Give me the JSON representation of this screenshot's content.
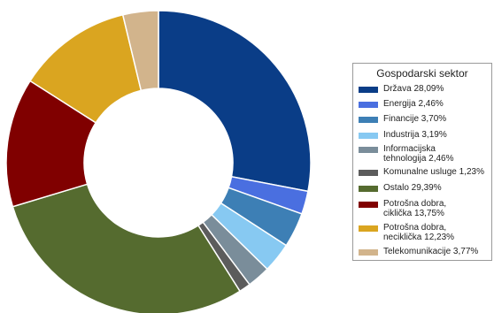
{
  "chart_data": {
    "type": "pie",
    "variant": "donut",
    "title": "",
    "legend": {
      "title": "Gospodarski sektor",
      "placement": "right"
    },
    "slices": [
      {
        "label": "Država 28,09%",
        "value": 28.09,
        "color": "#0a3d87"
      },
      {
        "label": "Energija 2,46%",
        "value": 2.46,
        "color": "#4a6fe0"
      },
      {
        "label": "Financije 3,70%",
        "value": 3.7,
        "color": "#3d7fb5"
      },
      {
        "label": "Industrija 3,19%",
        "value": 3.19,
        "color": "#87c9f2"
      },
      {
        "label": "Informacijska\ntehnologija 2,46%",
        "value": 2.46,
        "color": "#7a8d9a"
      },
      {
        "label": "Komunalne usluge 1,23%",
        "value": 1.23,
        "color": "#5c5c5c"
      },
      {
        "label": "Ostalo 29,39%",
        "value": 29.39,
        "color": "#556b2f"
      },
      {
        "label": "Potrošna dobra,\nciklička 13,75%",
        "value": 13.75,
        "color": "#800000"
      },
      {
        "label": "Potrošna dobra,\nneciklička 12,23%",
        "value": 12.23,
        "color": "#daa520"
      },
      {
        "label": "Telekomunikacije 3,77%",
        "value": 3.77,
        "color": "#d2b48c"
      }
    ]
  }
}
